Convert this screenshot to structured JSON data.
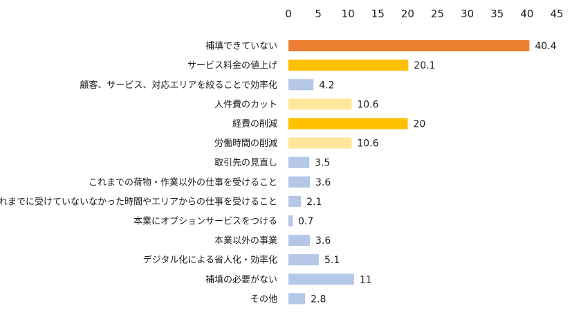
{
  "chart_data": {
    "type": "bar",
    "orientation": "horizontal",
    "xlim": [
      0,
      45
    ],
    "xticks": [
      "0",
      "5",
      "10",
      "15",
      "20",
      "25",
      "30",
      "35",
      "40",
      "45"
    ],
    "x_axis_position": "top",
    "grid": false,
    "legend": "none",
    "categories": [
      "補填できていない",
      "サービス料金の値上げ",
      "顧客、サービス、対応エリアを絞ることで効率化",
      "人件費のカット",
      "経費の削減",
      "労働時間の削減",
      "取引先の見直し",
      "これまでの荷物・作業以外の仕事を受けること",
      "これまでに受けていないなかった時間やエリアからの仕事を受けること",
      "本業にオプションサービスをつける",
      "本業以外の事業",
      "デジタル化による省人化・効率化",
      "補填の必要がない",
      "その他"
    ],
    "values": [
      40.4,
      20.1,
      4.2,
      10.6,
      20,
      10.6,
      3.5,
      3.6,
      2.1,
      0.7,
      3.6,
      5.1,
      11,
      2.8
    ],
    "data_labels": [
      "40.4",
      "20.1",
      "4.2",
      "10.6",
      "20",
      "10.6",
      "3.5",
      "3.6",
      "2.1",
      "0.7",
      "3.6",
      "5.1",
      "11",
      "2.8"
    ],
    "bar_colors": [
      "#ED7D31",
      "#FFC000",
      "#B4C7E7",
      "#FFE699",
      "#FFC000",
      "#FFE699",
      "#B4C7E7",
      "#B4C7E7",
      "#B4C7E7",
      "#B4C7E7",
      "#B4C7E7",
      "#B4C7E7",
      "#B4C7E7",
      "#B4C7E7"
    ]
  }
}
